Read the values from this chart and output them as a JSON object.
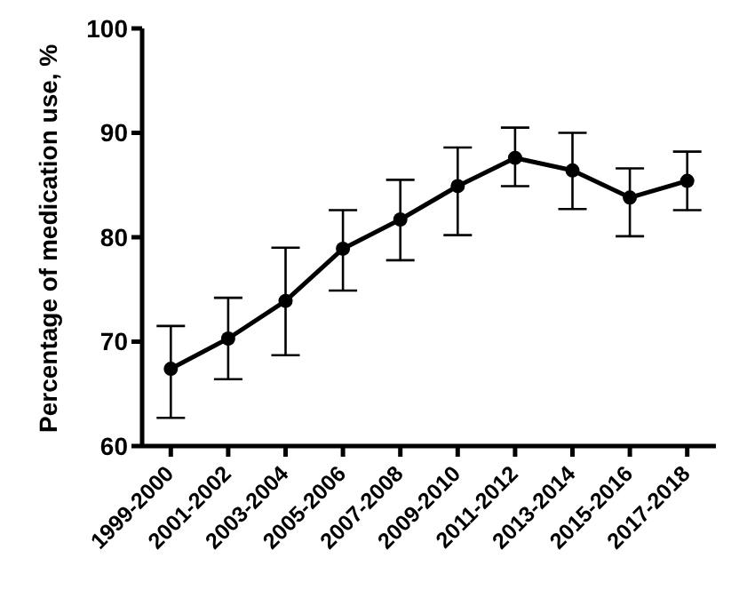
{
  "chart_data": {
    "type": "line",
    "ylabel": "Percentage of medication use, %",
    "categories": [
      "1999-2000",
      "2001-2002",
      "2003-2004",
      "2005-2006",
      "2007-2008",
      "2009-2010",
      "2011-2012",
      "2013-2014",
      "2015-2016",
      "2017-2018"
    ],
    "series": [
      {
        "color": "#000000",
        "values": [
          67.4,
          70.3,
          73.9,
          78.9,
          81.7,
          84.9,
          87.6,
          86.4,
          83.8,
          85.4
        ],
        "errors": [
          [
            62.7,
            71.5
          ],
          [
            66.4,
            74.2
          ],
          [
            68.7,
            79.0
          ],
          [
            74.9,
            82.6
          ],
          [
            77.8,
            85.5
          ],
          [
            80.2,
            88.6
          ],
          [
            84.9,
            90.5
          ],
          [
            82.7,
            90.0
          ],
          [
            80.1,
            86.6
          ],
          [
            82.6,
            88.2
          ]
        ]
      }
    ],
    "ylim": [
      60,
      100
    ],
    "yticks": [
      60,
      70,
      80,
      90,
      100
    ],
    "grid": false,
    "legend": false,
    "marker": "circle",
    "line_style": "solid"
  }
}
